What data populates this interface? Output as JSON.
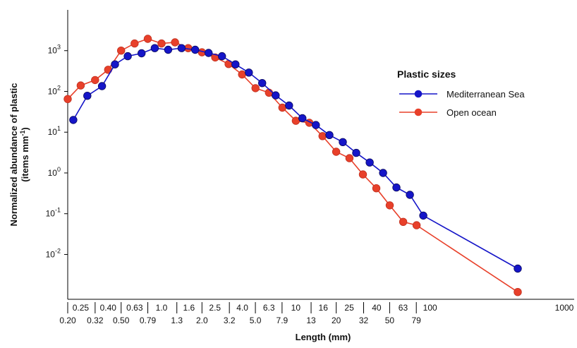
{
  "chart_data": {
    "type": "line",
    "xlabel": "Length (mm)",
    "ylabel_line1": "Normalized abundance of plastic",
    "ylabel_line2": "(items mm",
    "ylabel_sup": "-1",
    "ylabel_close": ")",
    "x_scale": "log",
    "y_scale": "log",
    "xlim": [
      0.2,
      1000
    ],
    "ylim_log10": [
      -3.1,
      4.0
    ],
    "ytick_exponents": [
      -2,
      -1,
      0,
      1,
      2,
      3
    ],
    "ytick_base": "10",
    "xticks_top": [
      "0.25",
      "0.40",
      "0.63",
      "1.0",
      "1.6",
      "2.5",
      "4.0",
      "6.3",
      "10",
      "16",
      "25",
      "40",
      "63",
      "100",
      "1000"
    ],
    "xticks_top_values": [
      0.25,
      0.4,
      0.63,
      1.0,
      1.6,
      2.5,
      4.0,
      6.3,
      10,
      16,
      25,
      40,
      63,
      100,
      1000
    ],
    "xticks_bottom": [
      "0.20",
      "0.32",
      "0.50",
      "0.79",
      "1.3",
      "2.0",
      "3.2",
      "5.0",
      "7.9",
      "13",
      "20",
      "32",
      "50",
      "79"
    ],
    "xticks_bottom_values": [
      0.2,
      0.32,
      0.5,
      0.79,
      1.3,
      2.0,
      3.2,
      5.0,
      7.9,
      13,
      20,
      32,
      50,
      79
    ],
    "legend_title": "Plastic sizes",
    "legend_position": "right",
    "grid": false,
    "series": [
      {
        "name": "Mediterranean Sea",
        "color": "#1515c8",
        "x": [
          0.22,
          0.28,
          0.36,
          0.45,
          0.56,
          0.71,
          0.89,
          1.12,
          1.41,
          1.78,
          2.24,
          2.82,
          3.55,
          4.47,
          5.62,
          7.08,
          8.91,
          11.2,
          14.1,
          17.8,
          22.4,
          28.2,
          35.5,
          44.7,
          56.2,
          70.8,
          89.1,
          450
        ],
        "y": [
          20,
          78,
          135,
          460,
          730,
          860,
          1150,
          1050,
          1150,
          1050,
          880,
          730,
          460,
          290,
          160,
          80,
          45,
          22,
          15,
          8.5,
          5.7,
          3.1,
          1.8,
          1.0,
          0.44,
          0.29,
          0.09,
          0.0045
        ]
      },
      {
        "name": "Open ocean",
        "color": "#e8402a",
        "x": [
          0.2,
          0.25,
          0.32,
          0.4,
          0.5,
          0.63,
          0.79,
          1.0,
          1.26,
          1.58,
          2.0,
          2.51,
          3.16,
          3.98,
          5.01,
          6.31,
          7.94,
          10.0,
          12.6,
          15.8,
          20.0,
          25.1,
          31.6,
          39.8,
          50.1,
          63.1,
          79.4,
          450
        ],
        "y": [
          65,
          140,
          190,
          340,
          1000,
          1500,
          1950,
          1500,
          1600,
          1150,
          910,
          680,
          470,
          260,
          120,
          93,
          40,
          19,
          17,
          8,
          3.3,
          2.3,
          0.92,
          0.42,
          0.16,
          0.063,
          0.052,
          0.0012
        ]
      }
    ]
  }
}
